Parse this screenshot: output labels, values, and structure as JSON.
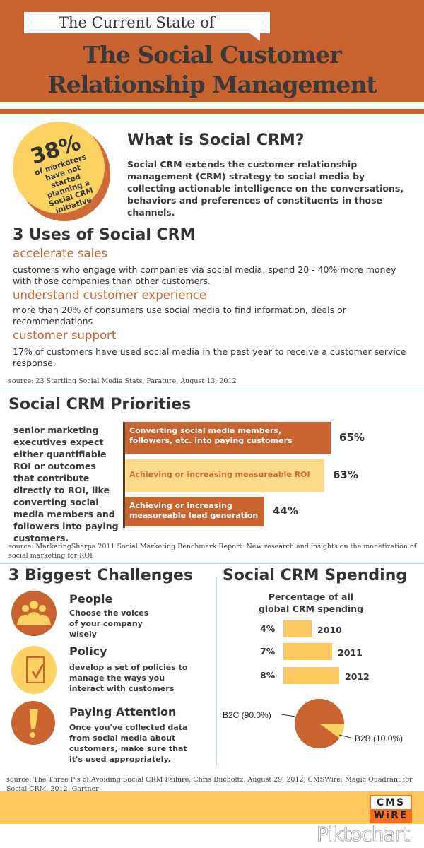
{
  "header": {
    "subtitle": "The Current State of",
    "title_line1": "The Social Customer",
    "title_line2": "Relationship Management"
  },
  "stat": {
    "value": "38%",
    "text": "of marketers have not started planning a Social CRM initiative"
  },
  "what": {
    "heading": "What is Social CRM?",
    "body": "Social CRM extends the customer relationship management (CRM) strategy to social media by collecting actionable intelligence on the conversations, behaviors and preferences of constituents in those channels."
  },
  "uses": {
    "heading": "3 Uses of Social CRM",
    "items": [
      {
        "title": "accelerate sales",
        "body": "customers who engage with companies via social media, spend 20 - 40% more money with those companies than other customers."
      },
      {
        "title": "understand customer experience",
        "body": "more than 20% of consumers use social media to find information, deals or recommendations"
      },
      {
        "title": "customer support",
        "body": "17% of customers have used social media in the past year to receive a customer service response."
      }
    ],
    "source": "source: 23 Startling Social Media Stats, Parature, August 13, 2012"
  },
  "priorities": {
    "heading": "Social CRM Priorities",
    "description": "senior marketing executives expect either quantifiable ROI or outcomes that contribute directly to ROI, like converting social media members and followers into paying customers.",
    "source": "source: MarketingSherpa 2011 Social Marketing Benchmark Report: New research and insights on the monetization of social marketing for ROI"
  },
  "challenges": {
    "heading": "3 Biggest Challenges",
    "items": [
      {
        "title": "People",
        "body": "Choose the voices of your company wisely"
      },
      {
        "title": "Policy",
        "body": "develop a set of policies to manage the ways you interact with customers"
      },
      {
        "title": "Paying Attention",
        "body": "Once you've collected data from social media about customers, make sure that it's used appropriately."
      }
    ]
  },
  "spending": {
    "heading": "Social CRM Spending",
    "subtitle": "Percentage of all global CRM spending"
  },
  "footer": {
    "source": "source: The Three P's of Avoiding Social CRM Failure, Chris Bucholtz, August 29, 2012, CMSWire; Magic Quadrant for Social CRM, 2012, Gartner",
    "logo_top": "CMS",
    "logo_bottom": "WiRE",
    "watermark": "Piktochart"
  },
  "colors": {
    "orange": "#c9632f",
    "yellow": "#fdc95e",
    "light_yellow": "#fdd98a"
  },
  "chart_data": [
    {
      "type": "bar",
      "title": "Social CRM Priorities",
      "categories": [
        "Converting social media members, followers, etc. into paying customers",
        "Achieving or increasing measureable ROI",
        "Achieving or increasing measureable lead generation"
      ],
      "values": [
        65,
        63,
        44
      ],
      "labels": [
        "65%",
        "63%",
        "44%"
      ]
    },
    {
      "type": "bar",
      "title": "Percentage of all global CRM spending",
      "categories": [
        "2010",
        "2011",
        "2012"
      ],
      "values": [
        4,
        7,
        8
      ],
      "labels": [
        "4%",
        "7%",
        "8%"
      ]
    },
    {
      "type": "pie",
      "categories": [
        "B2C",
        "B2B"
      ],
      "values": [
        90,
        10
      ],
      "labels": [
        "B2C (90.0%)",
        "B2B (10.0%)"
      ]
    }
  ]
}
